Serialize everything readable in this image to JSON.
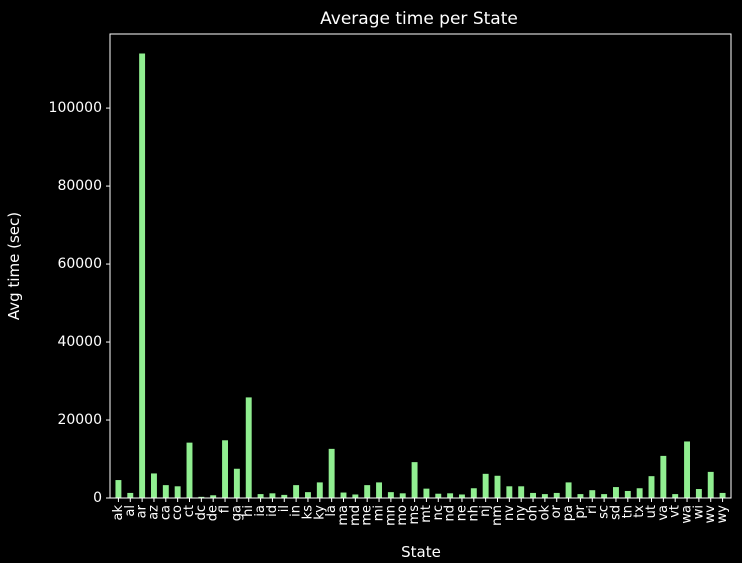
{
  "chart_data": {
    "type": "bar",
    "title": "Average time per State",
    "xlabel": "State",
    "ylabel": "Avg time (sec)",
    "ylim": [
      0,
      119000
    ],
    "yticks": [
      0,
      20000,
      40000,
      60000,
      80000,
      100000
    ],
    "ytick_labels": [
      "0",
      "20000",
      "40000",
      "60000",
      "80000",
      "100000"
    ],
    "grid": false,
    "bar_color": "#90ee90",
    "background": "#000000",
    "categories": [
      "ak",
      "al",
      "ar",
      "az",
      "ca",
      "co",
      "ct",
      "dc",
      "de",
      "fl",
      "ga",
      "hi",
      "ia",
      "id",
      "il",
      "in",
      "ks",
      "ky",
      "la",
      "ma",
      "md",
      "me",
      "mi",
      "mn",
      "mo",
      "ms",
      "mt",
      "nc",
      "nd",
      "ne",
      "nh",
      "nj",
      "nm",
      "nv",
      "ny",
      "oh",
      "ok",
      "or",
      "pa",
      "pr",
      "ri",
      "sc",
      "sd",
      "tn",
      "tx",
      "ut",
      "va",
      "vt",
      "wa",
      "wi",
      "wv",
      "wy"
    ],
    "values": [
      4600,
      1300,
      114000,
      6300,
      3300,
      3000,
      14200,
      300,
      700,
      14800,
      7500,
      25800,
      1000,
      1200,
      800,
      3300,
      1500,
      4000,
      12600,
      1400,
      900,
      3300,
      4000,
      1500,
      1200,
      9200,
      2400,
      1100,
      1200,
      900,
      2500,
      6200,
      5700,
      3000,
      3000,
      1300,
      1000,
      1300,
      4000,
      1000,
      2000,
      1000,
      2800,
      1800,
      2500,
      5600,
      10800,
      1000,
      14500,
      2300,
      6700,
      1300
    ]
  }
}
